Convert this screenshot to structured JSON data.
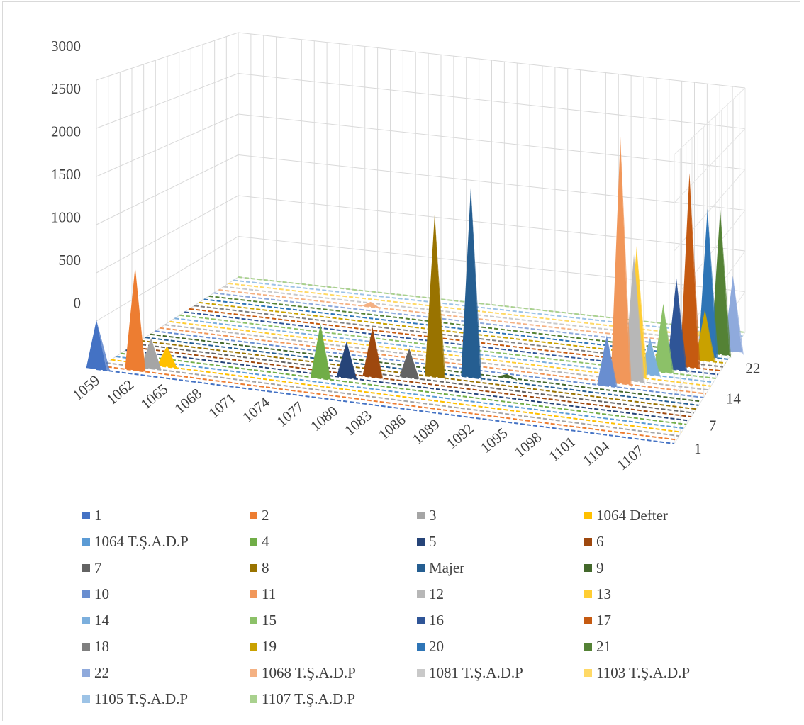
{
  "chart_data": {
    "type": "area",
    "title": "",
    "xlabel": "",
    "ylabel": "",
    "ylim": [
      0,
      3000
    ],
    "yticks": [
      "0",
      "500",
      "1000",
      "1500",
      "2000",
      "2500",
      "3000"
    ],
    "xticks": [
      "1059",
      "1062",
      "1065",
      "1068",
      "1071",
      "1074",
      "1077",
      "1080",
      "1083",
      "1086",
      "1089",
      "1092",
      "1095",
      "1098",
      "1101",
      "1104",
      "1107"
    ],
    "zticks": [
      "1",
      "7",
      "14",
      "22"
    ],
    "grid": true,
    "legend_position": "bottom",
    "series": [
      {
        "name": "1",
        "color": "#4472C4",
        "peaks": [
          [
            1059,
            510
          ]
        ]
      },
      {
        "name": "2",
        "color": "#ED7D31",
        "peaks": [
          [
            1062,
            1080
          ]
        ]
      },
      {
        "name": "3",
        "color": "#A5A5A5",
        "peaks": [
          [
            1063,
            320
          ]
        ]
      },
      {
        "name": "1064 Defter",
        "color": "#FFC000",
        "peaks": [
          [
            1064,
            220
          ]
        ]
      },
      {
        "name": "1064 T.Ş.A.D.P",
        "color": "#5B9BD5",
        "peaks": []
      },
      {
        "name": "4",
        "color": "#70AD47",
        "peaks": [
          [
            1077,
            580
          ]
        ]
      },
      {
        "name": "5",
        "color": "#264478",
        "peaks": [
          [
            1079,
            390
          ]
        ]
      },
      {
        "name": "6",
        "color": "#9E480E",
        "peaks": [
          [
            1081,
            540
          ]
        ]
      },
      {
        "name": "7",
        "color": "#636363",
        "peaks": [
          [
            1084,
            320
          ]
        ]
      },
      {
        "name": "8",
        "color": "#997300",
        "peaks": [
          [
            1086,
            1780
          ]
        ]
      },
      {
        "name": "Majer",
        "color": "#255E91",
        "peaks": [
          [
            1089,
            2090
          ]
        ]
      },
      {
        "name": "9",
        "color": "#43682B",
        "peaks": [
          [
            1092,
            40
          ]
        ]
      },
      {
        "name": "10",
        "color": "#698ED0",
        "peaks": [
          [
            1101,
            560
          ]
        ]
      },
      {
        "name": "11",
        "color": "#F1975A",
        "peaks": [
          [
            1102,
            2750
          ]
        ]
      },
      {
        "name": "12",
        "color": "#B7B7B7",
        "peaks": [
          [
            1103,
            1420
          ]
        ]
      },
      {
        "name": "13",
        "color": "#FFCD33",
        "peaks": [
          [
            1103,
            1480
          ]
        ]
      },
      {
        "name": "14",
        "color": "#7CAFDD",
        "peaks": [
          [
            1104,
            420
          ]
        ]
      },
      {
        "name": "15",
        "color": "#8CC168",
        "peaks": [
          [
            1105,
            780
          ]
        ]
      },
      {
        "name": "16",
        "color": "#2F5597",
        "peaks": [
          [
            1106,
            1050
          ]
        ]
      },
      {
        "name": "17",
        "color": "#C55A11",
        "peaks": [
          [
            1107,
            2240
          ]
        ]
      },
      {
        "name": "18",
        "color": "#7F7F7F",
        "peaks": [
          [
            1107,
            100
          ]
        ]
      },
      {
        "name": "19",
        "color": "#C9A100",
        "peaks": [
          [
            1108,
            600
          ]
        ]
      },
      {
        "name": "20",
        "color": "#2E75B6",
        "peaks": [
          [
            1108,
            1740
          ]
        ]
      },
      {
        "name": "21",
        "color": "#548235",
        "peaks": [
          [
            1109,
            1720
          ]
        ]
      },
      {
        "name": "22",
        "color": "#8FAADC",
        "peaks": [
          [
            1110,
            900
          ]
        ]
      },
      {
        "name": "1068 T.Ş.A.D.P",
        "color": "#F4B183",
        "peaks": [
          [
            1074,
            60
          ]
        ]
      },
      {
        "name": "1081 T.Ş.A.D.P",
        "color": "#C9C9C9",
        "peaks": []
      },
      {
        "name": "1103 T.Ş.A.D.P",
        "color": "#FFD966",
        "peaks": [
          [
            1106,
            60
          ]
        ]
      },
      {
        "name": "1105 T.Ş.A.D.P",
        "color": "#9DC3E6",
        "peaks": []
      },
      {
        "name": "1107 T.Ş.A.D.P",
        "color": "#A9D18E",
        "peaks": []
      }
    ]
  }
}
